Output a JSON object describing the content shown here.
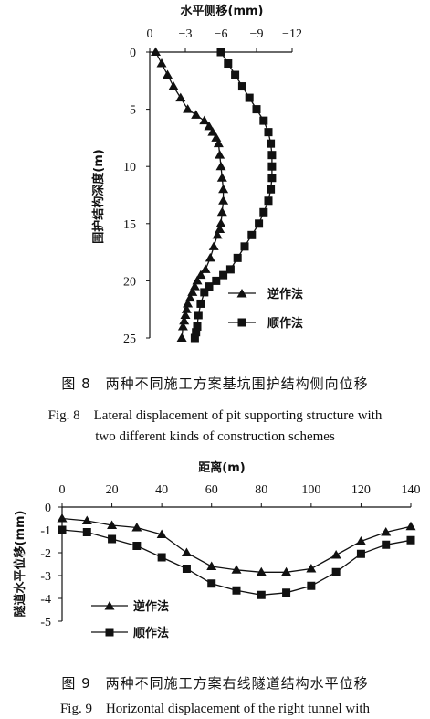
{
  "chart_data": [
    {
      "type": "line",
      "orientation": "depth-profile",
      "xlabel": "水平侧移(mm)",
      "ylabel": "围护结构深度(m)",
      "x_reversed": true,
      "xlim": [
        0,
        -12
      ],
      "ylim": [
        0,
        25
      ],
      "xticks": [
        0,
        -3,
        -6,
        -9,
        -12
      ],
      "yticks": [
        0,
        5,
        10,
        15,
        20,
        25
      ],
      "legend_position": "bottom-right",
      "series": [
        {
          "name": "逆作法",
          "marker": "triangle",
          "x": [
            -0.5,
            -1.0,
            -1.5,
            -2.0,
            -2.6,
            -3.2,
            -3.9,
            -4.6,
            -5.0,
            -5.3,
            -5.6,
            -5.8,
            -5.9,
            -6.0,
            -6.1,
            -6.2,
            -6.2,
            -6.1,
            -6.0,
            -5.9,
            -5.7,
            -5.4,
            -5.1,
            -4.7,
            -4.3,
            -4.0,
            -3.8,
            -3.6,
            -3.4,
            -3.2,
            -3.1,
            -3.0,
            -2.9,
            -2.8,
            -2.7
          ],
          "y": [
            0,
            1,
            2,
            3,
            4,
            5,
            5.5,
            6,
            6.5,
            7,
            7.5,
            8,
            9,
            10,
            11,
            12,
            13,
            14,
            15,
            15.5,
            16,
            17,
            18,
            19,
            19.5,
            20,
            20.5,
            21,
            21.5,
            22,
            22.5,
            23,
            23.5,
            24,
            25
          ]
        },
        {
          "name": "顺作法",
          "marker": "square",
          "x": [
            -6.0,
            -6.6,
            -7.2,
            -7.8,
            -8.4,
            -9.0,
            -9.6,
            -10.0,
            -10.2,
            -10.3,
            -10.3,
            -10.3,
            -10.2,
            -10.0,
            -9.6,
            -9.2,
            -8.6,
            -8.0,
            -7.4,
            -6.8,
            -6.2,
            -5.6,
            -5.0,
            -4.6,
            -4.3,
            -4.1,
            -4.0,
            -3.9,
            -3.8
          ],
          "y": [
            0,
            1,
            2,
            3,
            4,
            5,
            6,
            7,
            8,
            9,
            10,
            11,
            12,
            13,
            14,
            15,
            16,
            17,
            18,
            19,
            19.5,
            20,
            20.5,
            21,
            22,
            23,
            24,
            24.5,
            25
          ]
        }
      ]
    },
    {
      "type": "line",
      "xlabel": "距离(m)",
      "ylabel": "隧道水平位移(mm)",
      "x_axis_position": "top",
      "xlim": [
        0,
        140
      ],
      "ylim": [
        -5,
        0
      ],
      "xticks": [
        0,
        20,
        40,
        60,
        80,
        100,
        120,
        140
      ],
      "yticks": [
        0,
        -1,
        -2,
        -3,
        -4,
        -5
      ],
      "legend_position": "bottom-left",
      "series": [
        {
          "name": "逆作法",
          "marker": "triangle",
          "x": [
            0,
            10,
            20,
            30,
            40,
            50,
            60,
            70,
            80,
            90,
            100,
            110,
            120,
            130,
            140
          ],
          "y": [
            -0.5,
            -0.6,
            -0.8,
            -0.9,
            -1.2,
            -2.0,
            -2.6,
            -2.75,
            -2.85,
            -2.85,
            -2.7,
            -2.1,
            -1.5,
            -1.1,
            -0.85
          ]
        },
        {
          "name": "顺作法",
          "marker": "square",
          "x": [
            0,
            10,
            20,
            30,
            40,
            50,
            60,
            70,
            80,
            90,
            100,
            110,
            120,
            130,
            140
          ],
          "y": [
            -1.0,
            -1.1,
            -1.4,
            -1.7,
            -2.2,
            -2.7,
            -3.35,
            -3.65,
            -3.85,
            -3.75,
            -3.45,
            -2.85,
            -2.05,
            -1.65,
            -1.45
          ]
        }
      ]
    }
  ],
  "captions": {
    "fig8_cn": "图 8　两种不同施工方案基坑围护结构侧向位移",
    "fig8_en_line1": "Fig. 8　Lateral displacement of pit supporting structure with",
    "fig8_en_line2": "two different kinds of construction schemes",
    "fig9_cn": "图 9　两种不同施工方案右线隧道结构水平位移",
    "fig9_en_line1": "Fig. 9　Horizontal displacement of the right tunnel with"
  }
}
